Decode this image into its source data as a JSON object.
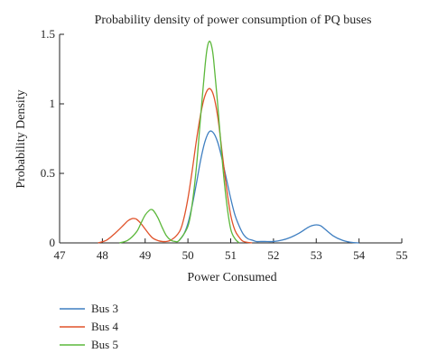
{
  "chart_data": {
    "type": "line",
    "title": "Probability density of power consumption of PQ buses",
    "xlabel": "Power Consumed",
    "ylabel": "Probability Density",
    "xlim": [
      47,
      55
    ],
    "ylim": [
      0,
      1.5
    ],
    "x_ticks": [
      47,
      48,
      49,
      50,
      51,
      52,
      53,
      54,
      55
    ],
    "y_ticks": [
      0,
      0.5,
      1,
      1.5
    ],
    "x_tick_labels": [
      "47",
      "48",
      "49",
      "50",
      "51",
      "52",
      "53",
      "54",
      "55"
    ],
    "y_tick_labels": [
      "0",
      "0.5",
      "1",
      "1.5"
    ],
    "grid": false,
    "legend_position": "bottom-left",
    "series": [
      {
        "name": "Bus 3",
        "color": "#3f7fc1",
        "x": [
          49.8,
          49.9,
          50.0,
          50.1,
          50.2,
          50.3,
          50.4,
          50.5,
          50.6,
          50.7,
          50.8,
          50.9,
          51.0,
          51.1,
          51.2,
          51.3,
          51.4,
          51.5,
          51.6,
          51.7,
          51.8,
          52.0,
          52.2,
          52.4,
          52.6,
          52.8,
          52.9,
          53.0,
          53.1,
          53.2,
          53.4,
          53.6,
          53.8,
          54.0
        ],
        "y": [
          0.02,
          0.06,
          0.14,
          0.27,
          0.43,
          0.6,
          0.73,
          0.8,
          0.79,
          0.72,
          0.6,
          0.46,
          0.32,
          0.2,
          0.12,
          0.06,
          0.03,
          0.02,
          0.01,
          0.01,
          0.01,
          0.01,
          0.02,
          0.04,
          0.07,
          0.11,
          0.124,
          0.13,
          0.124,
          0.1,
          0.05,
          0.02,
          0.005,
          0.0
        ]
      },
      {
        "name": "Bus 4",
        "color": "#e0522a",
        "x": [
          47.9,
          48.1,
          48.3,
          48.5,
          48.6,
          48.7,
          48.75,
          48.8,
          48.9,
          49.0,
          49.1,
          49.2,
          49.4,
          49.6,
          49.8,
          49.9,
          50.0,
          50.1,
          50.2,
          50.3,
          50.4,
          50.5,
          50.6,
          50.7,
          50.8,
          50.9,
          51.0,
          51.1,
          51.2,
          51.3,
          51.5
        ],
        "y": [
          0.0,
          0.02,
          0.07,
          0.13,
          0.16,
          0.175,
          0.175,
          0.17,
          0.14,
          0.1,
          0.06,
          0.03,
          0.01,
          0.02,
          0.08,
          0.17,
          0.32,
          0.52,
          0.74,
          0.93,
          1.06,
          1.11,
          1.06,
          0.9,
          0.65,
          0.4,
          0.2,
          0.09,
          0.04,
          0.01,
          0.0
        ]
      },
      {
        "name": "Bus 5",
        "color": "#5cb83b",
        "x": [
          48.4,
          48.6,
          48.8,
          48.9,
          49.0,
          49.1,
          49.15,
          49.2,
          49.3,
          49.4,
          49.5,
          49.6,
          49.7,
          49.8,
          50.0,
          50.1,
          50.2,
          50.3,
          50.4,
          50.45,
          50.5,
          50.55,
          50.6,
          50.7,
          50.8,
          50.9,
          51.0,
          51.1,
          51.2
        ],
        "y": [
          0.0,
          0.02,
          0.08,
          0.14,
          0.2,
          0.235,
          0.24,
          0.23,
          0.18,
          0.11,
          0.05,
          0.02,
          0.01,
          0.02,
          0.12,
          0.28,
          0.55,
          0.92,
          1.27,
          1.4,
          1.45,
          1.42,
          1.32,
          0.98,
          0.6,
          0.3,
          0.1,
          0.03,
          0.0
        ]
      }
    ]
  }
}
